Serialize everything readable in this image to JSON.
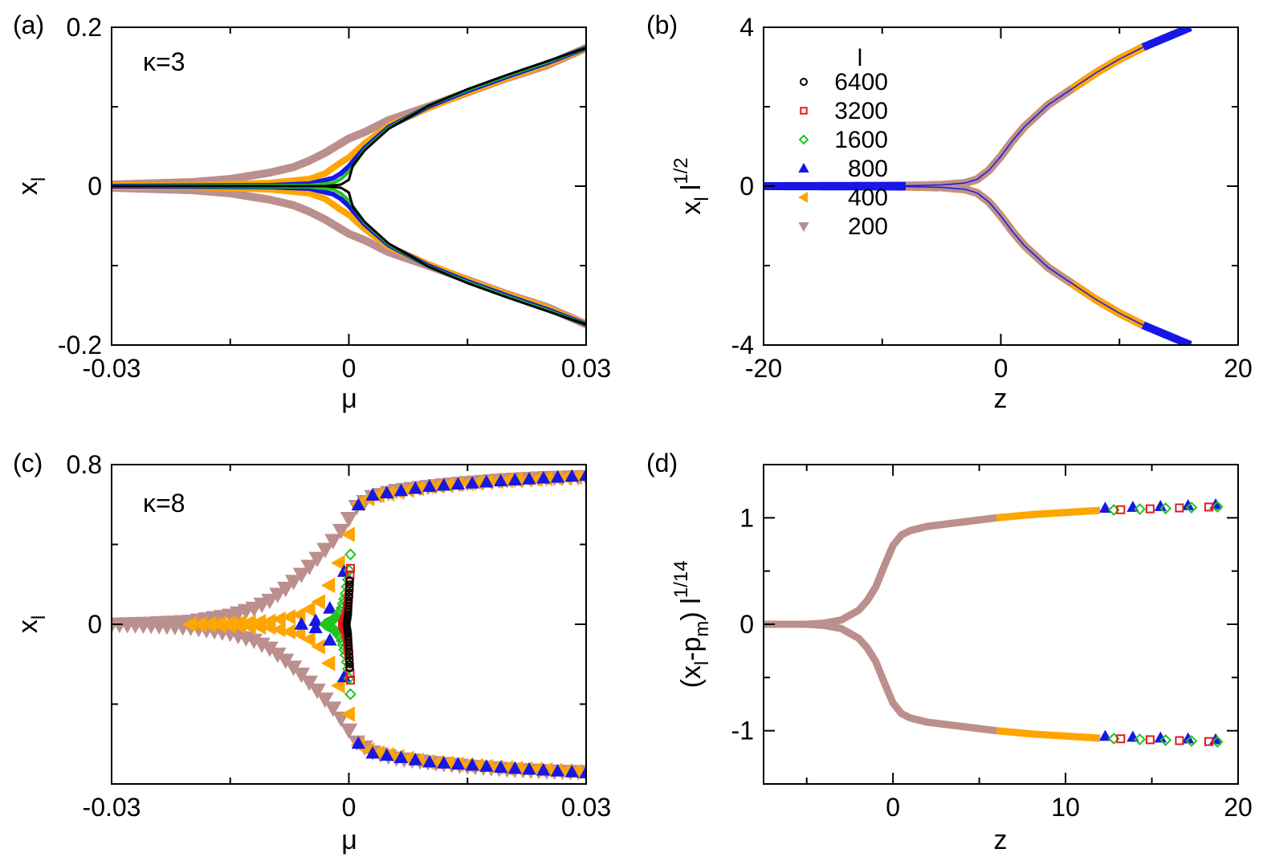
{
  "series_styles": [
    {
      "l": "6400",
      "color": "#000000",
      "marker": "circle"
    },
    {
      "l": "3200",
      "color": "#e41a1c",
      "marker": "square"
    },
    {
      "l": "1600",
      "color": "#1fc41f",
      "marker": "diamond"
    },
    {
      "l": "800",
      "color": "#1717e6",
      "marker": "triangle-up"
    },
    {
      "l": "400",
      "color": "#ffa500",
      "marker": "triangle-left"
    },
    {
      "l": "200",
      "color": "#bc8f8f",
      "marker": "triangle-down"
    }
  ],
  "chart_data": [
    {
      "panel": "(a)",
      "type": "line",
      "annotation": "κ=3",
      "xlabel": "μ",
      "ylabel": "x",
      "ylabel_sub": "l",
      "xlim": [
        -0.03,
        0.03
      ],
      "ylim": [
        -0.2,
        0.2
      ],
      "xticks": [
        {
          "v": -0.03,
          "label": "-0.03"
        },
        {
          "v": 0,
          "label": "0"
        },
        {
          "v": 0.03,
          "label": "0.03"
        }
      ],
      "xminor": [
        -0.015,
        0.015
      ],
      "yticks": [
        {
          "v": -0.2,
          "label": "-0.2"
        },
        {
          "v": 0,
          "label": "0"
        },
        {
          "v": 0.2,
          "label": "0.2"
        }
      ],
      "yminor": [
        -0.1,
        0.1
      ],
      "series": [
        {
          "l": "200",
          "x": [
            -0.03,
            -0.02,
            -0.015,
            -0.01,
            -0.007,
            -0.005,
            -0.003,
            -0.001,
            0,
            0.002,
            0.005,
            0.01,
            0.015,
            0.02,
            0.025,
            0.03
          ],
          "y": [
            0.002,
            0.005,
            0.009,
            0.017,
            0.024,
            0.032,
            0.042,
            0.054,
            0.06,
            0.068,
            0.083,
            0.1,
            0.118,
            0.136,
            0.152,
            0.174
          ]
        },
        {
          "l": "400",
          "x": [
            -0.03,
            -0.02,
            -0.01,
            -0.005,
            -0.003,
            -0.001,
            0,
            0.002,
            0.005,
            0.01,
            0.015,
            0.02,
            0.025,
            0.03
          ],
          "y": [
            0.001,
            0.001,
            0.004,
            0.009,
            0.016,
            0.03,
            0.036,
            0.054,
            0.076,
            0.098,
            0.118,
            0.136,
            0.153,
            0.174
          ]
        },
        {
          "l": "800",
          "x": [
            -0.03,
            -0.01,
            -0.005,
            -0.002,
            -0.001,
            0,
            0.002,
            0.005,
            0.01,
            0.015,
            0.02,
            0.025,
            0.03
          ],
          "y": [
            0.0,
            0.001,
            0.003,
            0.01,
            0.016,
            0.025,
            0.048,
            0.074,
            0.1,
            0.12,
            0.138,
            0.155,
            0.174
          ]
        },
        {
          "l": "1600",
          "x": [
            -0.03,
            -0.005,
            -0.002,
            -0.001,
            0,
            0.002,
            0.005,
            0.01,
            0.015,
            0.02,
            0.025,
            0.03
          ],
          "y": [
            0.0,
            0.001,
            0.004,
            0.009,
            0.018,
            0.046,
            0.073,
            0.101,
            0.121,
            0.139,
            0.156,
            0.174
          ]
        },
        {
          "l": "6400",
          "x": [
            -0.03,
            -0.003,
            -0.001,
            0,
            0.0005,
            0.002,
            0.005,
            0.01,
            0.015,
            0.02,
            0.025,
            0.03
          ],
          "y": [
            0.0,
            0.0,
            0.002,
            0.008,
            0.026,
            0.045,
            0.072,
            0.101,
            0.122,
            0.14,
            0.157,
            0.174
          ]
        }
      ],
      "symmetric": true
    },
    {
      "panel": "(b)",
      "type": "line",
      "xlabel": "z",
      "ylabel": "x",
      "ylabel_sub": "l",
      "ylabel_rest": "l",
      "ylabel_sup": "1/2",
      "xlim": [
        -20,
        20
      ],
      "ylim": [
        -4,
        4
      ],
      "xticks": [
        {
          "v": -20,
          "label": "-20"
        },
        {
          "v": 0,
          "label": "0"
        },
        {
          "v": 20,
          "label": "20"
        }
      ],
      "xminor": [
        -10,
        10
      ],
      "yticks": [
        {
          "v": -4,
          "label": "-4"
        },
        {
          "v": 0,
          "label": "0"
        },
        {
          "v": 4,
          "label": "4"
        }
      ],
      "yminor": [
        -2,
        2
      ],
      "legend": {
        "title": "l",
        "placement": "top-left"
      },
      "curve": {
        "z": [
          -20,
          -8,
          -5,
          -3,
          -2,
          -1,
          0,
          1,
          2,
          4,
          6,
          8,
          10,
          12,
          14,
          16
        ],
        "y": [
          0.0,
          0.01,
          0.03,
          0.08,
          0.17,
          0.4,
          0.75,
          1.15,
          1.5,
          2.05,
          2.45,
          2.85,
          3.2,
          3.5,
          3.75,
          4.0
        ]
      },
      "series": [
        {
          "l": "800",
          "zmin": -20,
          "zmax": 16
        },
        {
          "l": "400",
          "zmin": -8,
          "zmax": 12.2
        },
        {
          "l": "200",
          "zmin": -8,
          "zmax": 6.2
        }
      ],
      "symmetric": true
    },
    {
      "panel": "(c)",
      "type": "scatter",
      "annotation": "κ=8",
      "xlabel": "μ",
      "ylabel": "x",
      "ylabel_sub": "l",
      "xlim": [
        -0.03,
        0.03
      ],
      "ylim": [
        -0.8,
        0.8
      ],
      "xticks": [
        {
          "v": -0.03,
          "label": "-0.03"
        },
        {
          "v": 0,
          "label": "0"
        },
        {
          "v": 0.03,
          "label": "0.03"
        }
      ],
      "xminor": [
        -0.015,
        0.015
      ],
      "yticks": [
        {
          "v": 0,
          "label": "0"
        },
        {
          "v": 0.8,
          "label": "0.8"
        }
      ],
      "yminor": [
        -0.4,
        0.4
      ],
      "series": [
        {
          "l": "200",
          "x": [
            -0.03,
            -0.025,
            -0.02,
            -0.015,
            -0.012,
            -0.01,
            -0.008,
            -0.006,
            -0.004,
            -0.002,
            -0.001,
            0,
            0.001,
            0.003,
            0.006,
            0.01,
            0.015,
            0.02,
            0.025,
            0.03
          ],
          "y": [
            0.0,
            0.005,
            0.015,
            0.045,
            0.08,
            0.12,
            0.18,
            0.25,
            0.33,
            0.42,
            0.47,
            0.53,
            0.59,
            0.64,
            0.67,
            0.69,
            0.71,
            0.725,
            0.735,
            0.74
          ]
        },
        {
          "l": "400",
          "x": [
            -0.02,
            -0.01,
            -0.006,
            -0.004,
            -0.003,
            -0.002,
            -0.001,
            0,
            0.001,
            0.003,
            0.01,
            0.02,
            0.03
          ],
          "y": [
            0.0,
            0.015,
            0.05,
            0.1,
            0.15,
            0.24,
            0.33,
            0.45,
            0.6,
            0.64,
            0.69,
            0.72,
            0.74
          ]
        },
        {
          "l": "800",
          "x": [
            -0.006,
            -0.004,
            -0.003,
            -0.002,
            -0.0015,
            -0.001,
            -0.0005,
            0,
            0.0005,
            0.002,
            0.01,
            0.02,
            0.03
          ],
          "y": [
            0.0,
            0.02,
            0.05,
            0.1,
            0.15,
            0.2,
            0.28,
            0.4,
            0.56,
            0.64,
            0.69,
            0.72,
            0.745
          ]
        },
        {
          "l": "1600",
          "x": [
            -0.003,
            -0.002,
            -0.001,
            -0.0005,
            0,
            0.0002
          ],
          "y": [
            0.0,
            0.02,
            0.07,
            0.14,
            0.25,
            0.35
          ]
        },
        {
          "l": "3200",
          "x": [
            -0.0008,
            -0.0004,
            -0.0002,
            0,
            0.0002
          ],
          "y": [
            0.0,
            0.03,
            0.08,
            0.15,
            0.28
          ]
        },
        {
          "l": "6400",
          "x": [
            -0.0003,
            -0.0001,
            0,
            0.0001
          ],
          "y": [
            0.0,
            0.05,
            0.12,
            0.22
          ]
        }
      ],
      "symmetric": true
    },
    {
      "panel": "(d)",
      "type": "scatter",
      "xlabel": "z",
      "ylabel": "(x",
      "ylabel_sub": "l",
      "ylabel_mid": "-p",
      "ylabel_sub2": "m",
      "ylabel_rest": ") l",
      "ylabel_sup": "1/14",
      "xlim": [
        -7.5,
        20
      ],
      "ylim": [
        -1.5,
        1.5
      ],
      "xticks": [
        {
          "v": 0,
          "label": "0"
        },
        {
          "v": 10,
          "label": "10"
        },
        {
          "v": 20,
          "label": "20"
        }
      ],
      "xminor": [
        -5,
        5,
        15
      ],
      "yticks": [
        {
          "v": -1,
          "label": "-1"
        },
        {
          "v": 0,
          "label": "0"
        },
        {
          "v": 1,
          "label": "1"
        }
      ],
      "yminor": [
        -0.5,
        0.5
      ],
      "curve": {
        "z": [
          -7.5,
          -5,
          -4,
          -3,
          -2,
          -1.5,
          -1,
          -0.5,
          0,
          0.5,
          1,
          2,
          4,
          6,
          8,
          10,
          12,
          14,
          16,
          18,
          20
        ],
        "y": [
          0.0,
          0.0,
          0.01,
          0.04,
          0.13,
          0.22,
          0.35,
          0.55,
          0.74,
          0.84,
          0.88,
          0.92,
          0.96,
          1.0,
          1.03,
          1.05,
          1.07,
          1.08,
          1.09,
          1.1,
          1.11
        ]
      },
      "series": [
        {
          "l": "800",
          "zmin": 12.3,
          "zmax": 20
        },
        {
          "l": "1600",
          "zmin": 12.3,
          "zmax": 20
        },
        {
          "l": "3200",
          "zmin": 12.3,
          "zmax": 18.6
        },
        {
          "l": "400",
          "zmin": -7.5,
          "zmax": 12.2
        },
        {
          "l": "200",
          "zmin": -7.5,
          "zmax": 6.2
        }
      ],
      "symmetric": true
    }
  ]
}
